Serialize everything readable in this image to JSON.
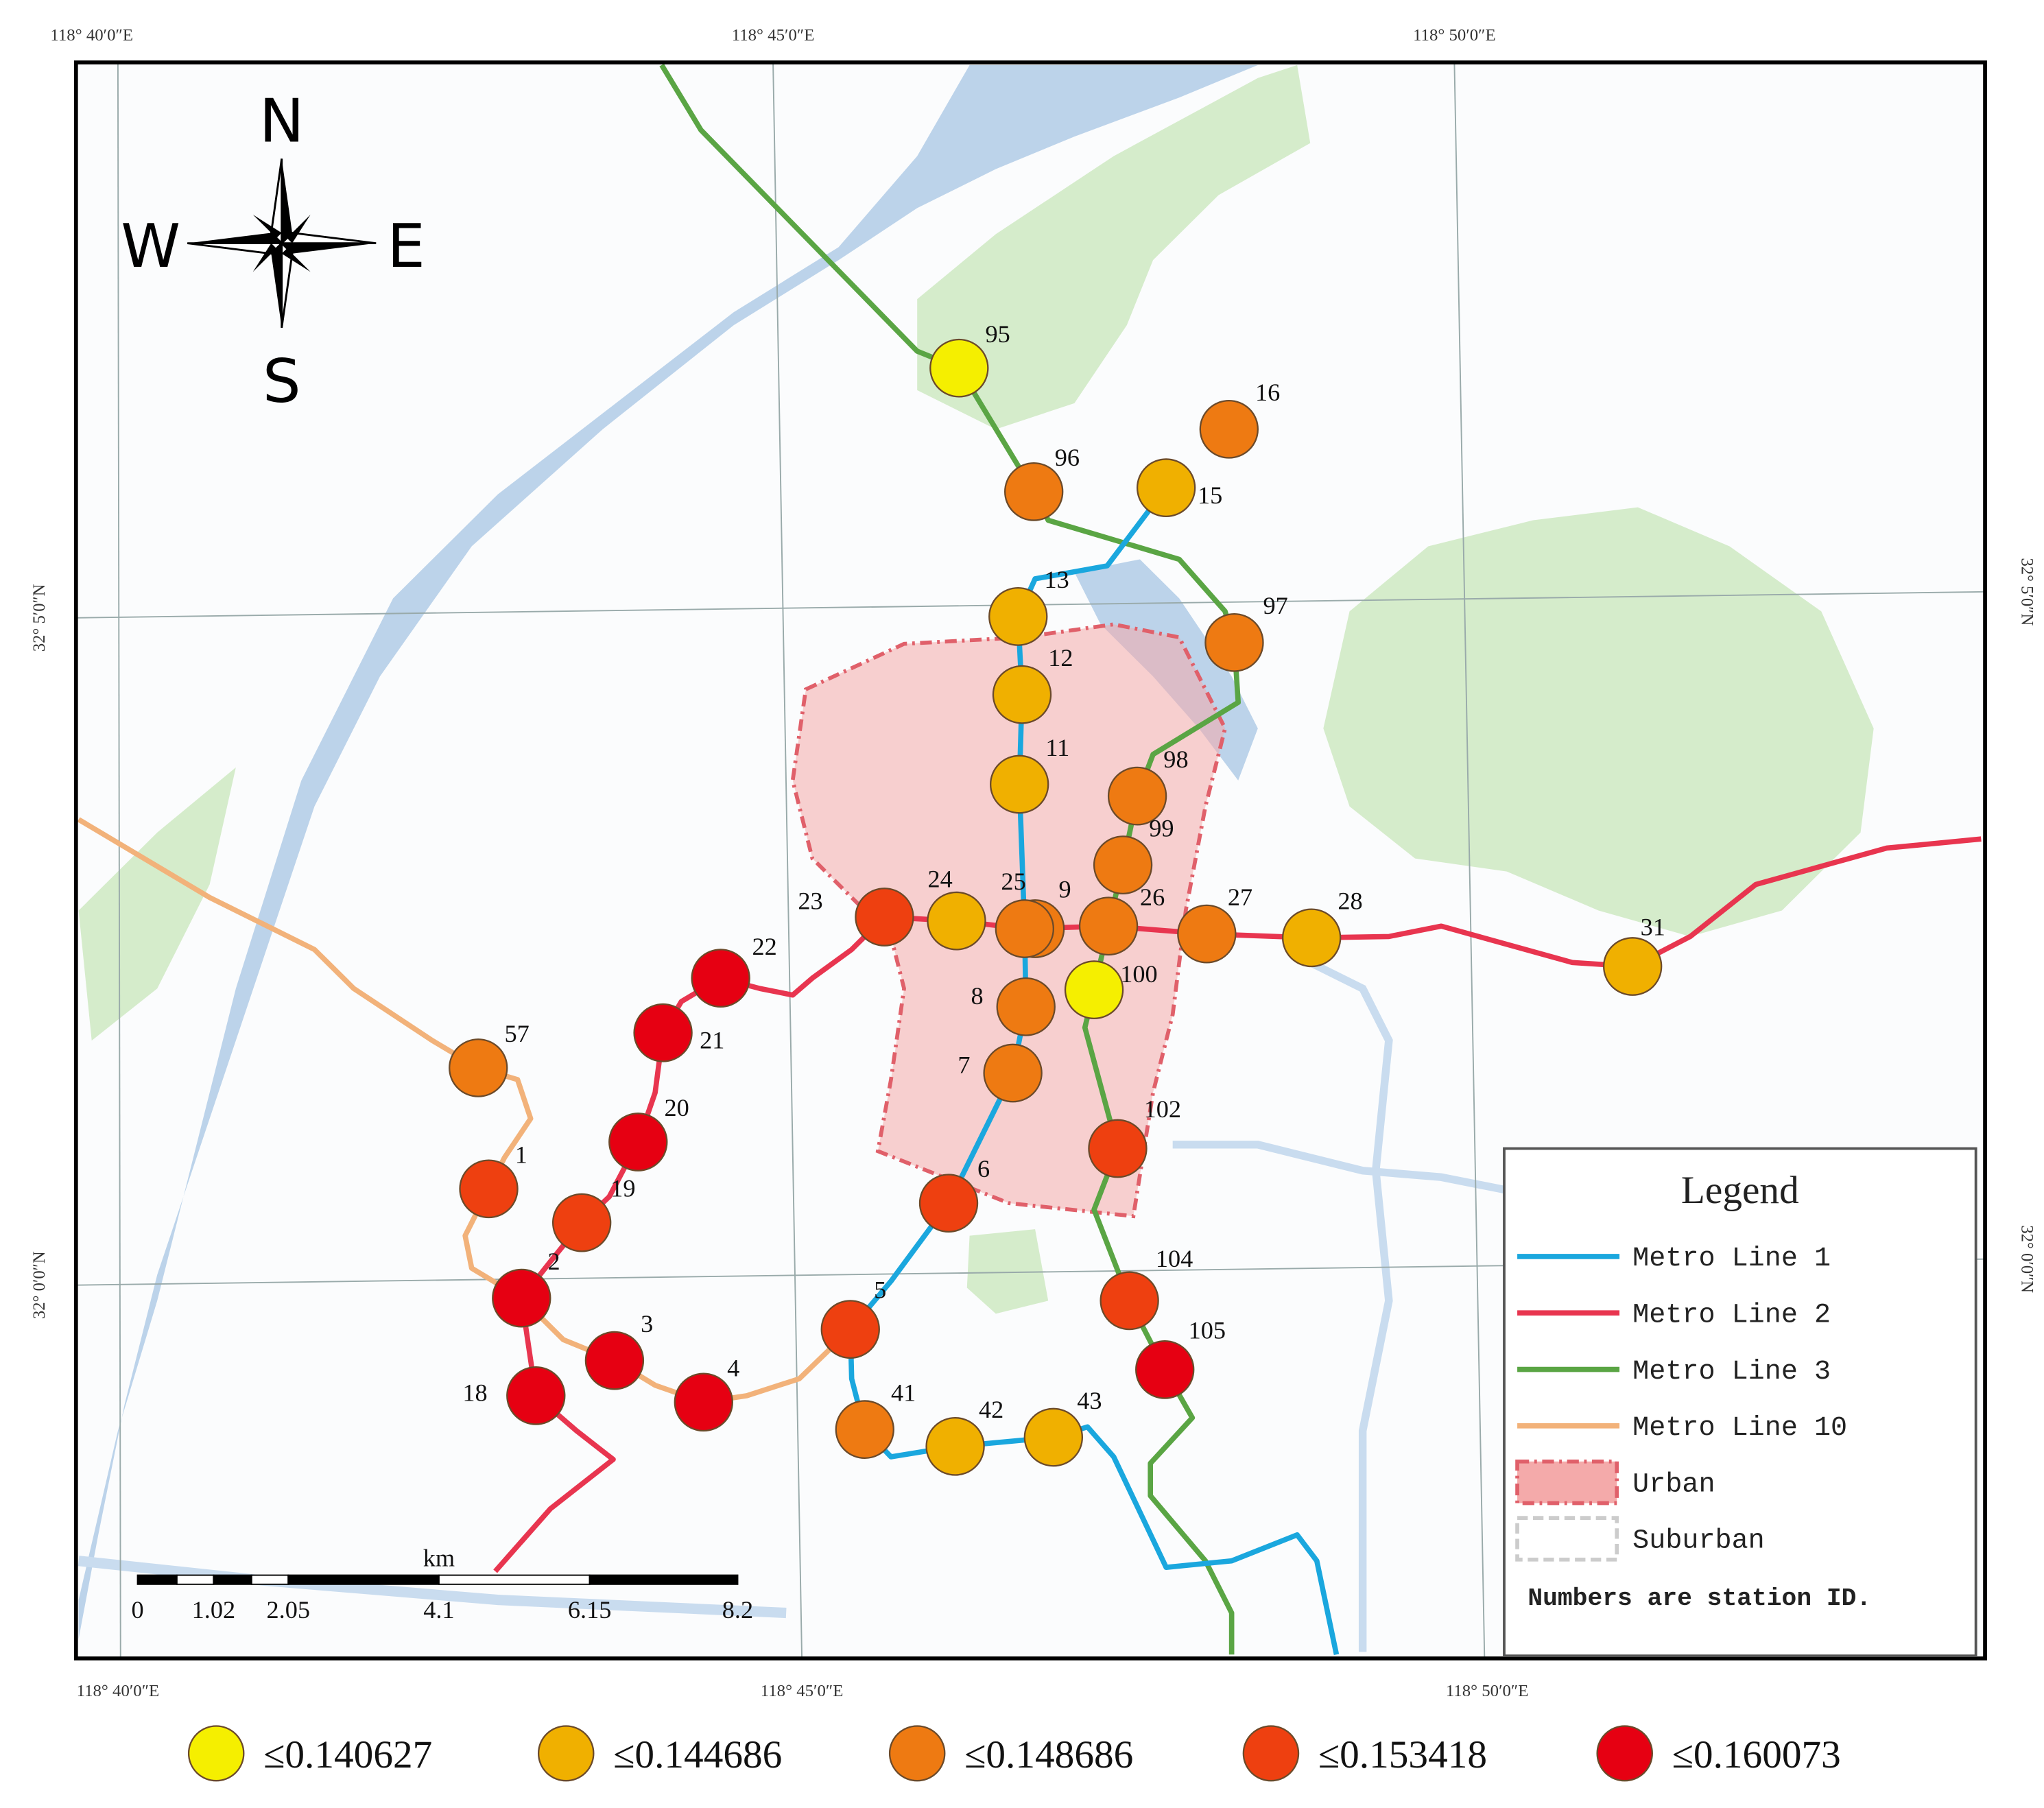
{
  "coordinates": {
    "top": [
      "118° 40′0″E",
      "118° 45′0″E",
      "118° 50′0″E"
    ],
    "bottom": [
      "118° 40′0″E",
      "118° 45′0″E",
      "118° 50′0″E"
    ],
    "left": [
      "32° 5′0″N",
      "32° 0′0″N"
    ],
    "right": [
      "32° 5′0″N",
      "32° 0′0″N"
    ]
  },
  "compass": {
    "north": "N",
    "south": "S",
    "east": "E",
    "west": "W"
  },
  "stations": [
    {
      "label": "95",
      "color": "#f5ef00"
    },
    {
      "label": "16",
      "color": "#ee7a12"
    },
    {
      "label": "96",
      "color": "#ee7a12"
    },
    {
      "label": "15",
      "color": "#f0b000"
    },
    {
      "label": "13",
      "color": "#f0b000"
    },
    {
      "label": "97",
      "color": "#ee7a12"
    },
    {
      "label": "12",
      "color": "#f0b000"
    },
    {
      "label": "11",
      "color": "#f0b000"
    },
    {
      "label": "98",
      "color": "#ee7a12"
    },
    {
      "label": "99",
      "color": "#ee7a12"
    },
    {
      "label": "23",
      "color": "#ee4010"
    },
    {
      "label": "24",
      "color": "#f0b000"
    },
    {
      "label": "9",
      "color": "#ee7a12"
    },
    {
      "label": "25",
      "color": "#ee7a12"
    },
    {
      "label": "26",
      "color": "#ee7a12"
    },
    {
      "label": "27",
      "color": "#ee7a12"
    },
    {
      "label": "28",
      "color": "#f0b000"
    },
    {
      "label": "31",
      "color": "#f0b000"
    },
    {
      "label": "22",
      "color": "#e60012"
    },
    {
      "label": "21",
      "color": "#e60012"
    },
    {
      "label": "100",
      "color": "#f5ef00"
    },
    {
      "label": "8",
      "color": "#ee7a12"
    },
    {
      "label": "7",
      "color": "#ee7a12"
    },
    {
      "label": "57",
      "color": "#ee7a12"
    },
    {
      "label": "20",
      "color": "#e60012"
    },
    {
      "label": "102",
      "color": "#ee4010"
    },
    {
      "label": "1",
      "color": "#ee4010"
    },
    {
      "label": "19",
      "color": "#ee4010"
    },
    {
      "label": "6",
      "color": "#ee4010"
    },
    {
      "label": "2",
      "color": "#e60012"
    },
    {
      "label": "104",
      "color": "#ee4010"
    },
    {
      "label": "5",
      "color": "#ee4010"
    },
    {
      "label": "105",
      "color": "#e60012"
    },
    {
      "label": "3",
      "color": "#e60012"
    },
    {
      "label": "18",
      "color": "#e60012"
    },
    {
      "label": "4",
      "color": "#e60012"
    },
    {
      "label": "41",
      "color": "#ee7a12"
    },
    {
      "label": "42",
      "color": "#f0b000"
    },
    {
      "label": "43",
      "color": "#f0b000"
    }
  ],
  "legend": {
    "title": "Legend",
    "items": [
      {
        "label": "Metro Line 1",
        "color": "#1aa7de"
      },
      {
        "label": "Metro Line 2",
        "color": "#e8354f"
      },
      {
        "label": "Metro Line 3",
        "color": "#5aa544"
      },
      {
        "label": "Metro Line 10",
        "color": "#f2b27a"
      },
      {
        "label": "Urban",
        "color": "#f4aaaa"
      },
      {
        "label": "Suburban",
        "color": "#cccccc"
      }
    ],
    "note": "Numbers are station ID."
  },
  "scale_bar": {
    "unit": "km",
    "labels": [
      "0",
      "1.02",
      "2.05",
      "4.1",
      "6.15",
      "8.2"
    ]
  },
  "classes": [
    {
      "label": "≤0.140627",
      "color": "#f5ef00"
    },
    {
      "label": "≤0.144686",
      "color": "#f0b000"
    },
    {
      "label": "≤0.148686",
      "color": "#ee7a12"
    },
    {
      "label": "≤0.153418",
      "color": "#ee4010"
    },
    {
      "label": "≤0.160073",
      "color": "#e60012"
    }
  ]
}
